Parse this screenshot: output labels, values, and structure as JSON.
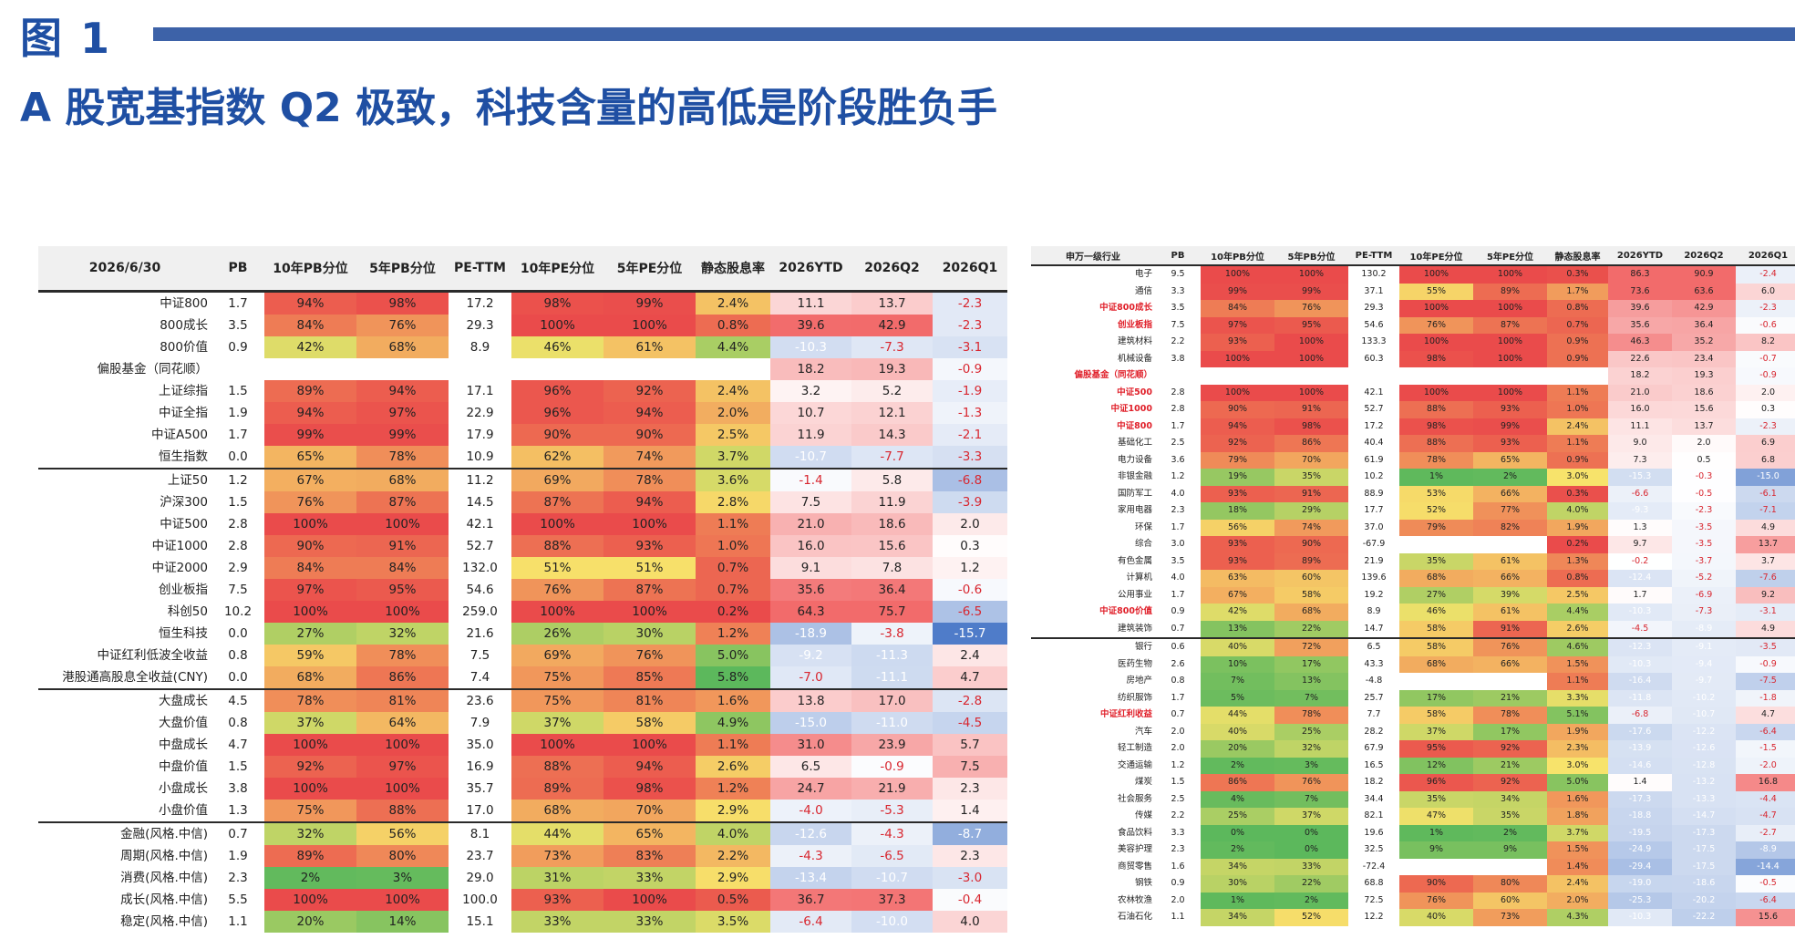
{
  "figure_label": "图 1",
  "title": "A 股宽基指数 Q2 极致，科技含量的高低是阶段胜负手",
  "left_table": {
    "headers": [
      "2026/6/30",
      "PB",
      "10年PB分位",
      "5年PB分位",
      "PE-TTM",
      "10年PE分位",
      "5年PE分位",
      "静态股息率",
      "2026YTD",
      "2026Q2",
      "2026Q1"
    ],
    "rows": [
      {
        "name": "中证800",
        "pb": "1.7",
        "pb10": "94%",
        "pb5": "98%",
        "pe": "17.2",
        "pe10": "98%",
        "pe5": "99%",
        "dy": "2.4%",
        "ytd": "11.1",
        "q2": "13.7",
        "q1": "-2.3"
      },
      {
        "name": "800成长",
        "pb": "3.5",
        "pb10": "84%",
        "pb5": "76%",
        "pe": "29.3",
        "pe10": "100%",
        "pe5": "100%",
        "dy": "0.8%",
        "ytd": "39.6",
        "q2": "42.9",
        "q1": "-2.3"
      },
      {
        "name": "800价值",
        "pb": "0.9",
        "pb10": "42%",
        "pb5": "68%",
        "pe": "8.9",
        "pe10": "46%",
        "pe5": "61%",
        "dy": "4.4%",
        "ytd": "-10.3",
        "q2": "-7.3",
        "q1": "-3.1"
      },
      {
        "name": "偏股基金（同花顺）",
        "pb": "",
        "pb10": "",
        "pb5": "",
        "pe": "",
        "pe10": "",
        "pe5": "",
        "dy": "",
        "ytd": "18.2",
        "q2": "19.3",
        "q1": "-0.9"
      },
      {
        "name": "上证综指",
        "pb": "1.5",
        "pb10": "89%",
        "pb5": "94%",
        "pe": "17.1",
        "pe10": "96%",
        "pe5": "92%",
        "dy": "2.4%",
        "ytd": "3.2",
        "q2": "5.2",
        "q1": "-1.9"
      },
      {
        "name": "中证全指",
        "pb": "1.9",
        "pb10": "94%",
        "pb5": "97%",
        "pe": "22.9",
        "pe10": "96%",
        "pe5": "94%",
        "dy": "2.0%",
        "ytd": "10.7",
        "q2": "12.1",
        "q1": "-1.3"
      },
      {
        "name": "中证A500",
        "pb": "1.7",
        "pb10": "99%",
        "pb5": "99%",
        "pe": "17.9",
        "pe10": "90%",
        "pe5": "90%",
        "dy": "2.5%",
        "ytd": "11.9",
        "q2": "14.3",
        "q1": "-2.1"
      },
      {
        "name": "恒生指数",
        "pb": "0.0",
        "pb10": "65%",
        "pb5": "78%",
        "pe": "10.9",
        "pe10": "62%",
        "pe5": "74%",
        "dy": "3.7%",
        "ytd": "-10.7",
        "q2": "-7.7",
        "q1": "-3.3"
      },
      {
        "name": "上证50",
        "pb": "1.2",
        "pb10": "67%",
        "pb5": "68%",
        "pe": "11.2",
        "pe10": "69%",
        "pe5": "78%",
        "dy": "3.6%",
        "ytd": "-1.4",
        "q2": "5.8",
        "q1": "-6.8",
        "sep": true
      },
      {
        "name": "沪深300",
        "pb": "1.5",
        "pb10": "76%",
        "pb5": "87%",
        "pe": "14.5",
        "pe10": "87%",
        "pe5": "94%",
        "dy": "2.8%",
        "ytd": "7.5",
        "q2": "11.9",
        "q1": "-3.9"
      },
      {
        "name": "中证500",
        "pb": "2.8",
        "pb10": "100%",
        "pb5": "100%",
        "pe": "42.1",
        "pe10": "100%",
        "pe5": "100%",
        "dy": "1.1%",
        "ytd": "21.0",
        "q2": "18.6",
        "q1": "2.0"
      },
      {
        "name": "中证1000",
        "pb": "2.8",
        "pb10": "90%",
        "pb5": "91%",
        "pe": "52.7",
        "pe10": "88%",
        "pe5": "93%",
        "dy": "1.0%",
        "ytd": "16.0",
        "q2": "15.6",
        "q1": "0.3"
      },
      {
        "name": "中证2000",
        "pb": "2.9",
        "pb10": "84%",
        "pb5": "84%",
        "pe": "132.0",
        "pe10": "51%",
        "pe5": "51%",
        "dy": "0.7%",
        "ytd": "9.1",
        "q2": "7.8",
        "q1": "1.2"
      },
      {
        "name": "创业板指",
        "pb": "7.5",
        "pb10": "97%",
        "pb5": "95%",
        "pe": "54.6",
        "pe10": "76%",
        "pe5": "87%",
        "dy": "0.7%",
        "ytd": "35.6",
        "q2": "36.4",
        "q1": "-0.6"
      },
      {
        "name": "科创50",
        "pb": "10.2",
        "pb10": "100%",
        "pb5": "100%",
        "pe": "259.0",
        "pe10": "100%",
        "pe5": "100%",
        "dy": "0.2%",
        "ytd": "64.3",
        "q2": "75.7",
        "q1": "-6.5"
      },
      {
        "name": "恒生科技",
        "pb": "0.0",
        "pb10": "27%",
        "pb5": "32%",
        "pe": "21.6",
        "pe10": "26%",
        "pe5": "30%",
        "dy": "1.2%",
        "ytd": "-18.9",
        "q2": "-3.8",
        "q1": "-15.7"
      },
      {
        "name": "中证红利低波全收益",
        "pb": "0.8",
        "pb10": "59%",
        "pb5": "78%",
        "pe": "7.5",
        "pe10": "69%",
        "pe5": "76%",
        "dy": "5.0%",
        "ytd": "-9.2",
        "q2": "-11.3",
        "q1": "2.4"
      },
      {
        "name": "港股通高股息全收益(CNY)",
        "pb": "0.0",
        "pb10": "68%",
        "pb5": "86%",
        "pe": "7.4",
        "pe10": "75%",
        "pe5": "85%",
        "dy": "5.8%",
        "ytd": "-7.0",
        "q2": "-11.1",
        "q1": "4.7"
      },
      {
        "name": "大盘成长",
        "pb": "4.5",
        "pb10": "78%",
        "pb5": "81%",
        "pe": "23.6",
        "pe10": "75%",
        "pe5": "81%",
        "dy": "1.6%",
        "ytd": "13.8",
        "q2": "17.0",
        "q1": "-2.8",
        "sep": true
      },
      {
        "name": "大盘价值",
        "pb": "0.8",
        "pb10": "37%",
        "pb5": "64%",
        "pe": "7.9",
        "pe10": "37%",
        "pe5": "58%",
        "dy": "4.9%",
        "ytd": "-15.0",
        "q2": "-11.0",
        "q1": "-4.5"
      },
      {
        "name": "中盘成长",
        "pb": "4.7",
        "pb10": "100%",
        "pb5": "100%",
        "pe": "35.0",
        "pe10": "100%",
        "pe5": "100%",
        "dy": "1.1%",
        "ytd": "31.0",
        "q2": "23.9",
        "q1": "5.7"
      },
      {
        "name": "中盘价值",
        "pb": "1.5",
        "pb10": "92%",
        "pb5": "97%",
        "pe": "16.9",
        "pe10": "88%",
        "pe5": "94%",
        "dy": "2.6%",
        "ytd": "6.5",
        "q2": "-0.9",
        "q1": "7.5"
      },
      {
        "name": "小盘成长",
        "pb": "3.8",
        "pb10": "100%",
        "pb5": "100%",
        "pe": "35.7",
        "pe10": "89%",
        "pe5": "98%",
        "dy": "1.2%",
        "ytd": "24.7",
        "q2": "21.9",
        "q1": "2.3"
      },
      {
        "name": "小盘价值",
        "pb": "1.3",
        "pb10": "75%",
        "pb5": "88%",
        "pe": "17.0",
        "pe10": "68%",
        "pe5": "70%",
        "dy": "2.9%",
        "ytd": "-4.0",
        "q2": "-5.3",
        "q1": "1.4"
      },
      {
        "name": "金融(风格.中信)",
        "pb": "0.7",
        "pb10": "32%",
        "pb5": "56%",
        "pe": "8.1",
        "pe10": "44%",
        "pe5": "65%",
        "dy": "4.0%",
        "ytd": "-12.6",
        "q2": "-4.3",
        "q1": "-8.7",
        "sep": true
      },
      {
        "name": "周期(风格.中信)",
        "pb": "1.9",
        "pb10": "89%",
        "pb5": "80%",
        "pe": "23.7",
        "pe10": "73%",
        "pe5": "83%",
        "dy": "2.2%",
        "ytd": "-4.3",
        "q2": "-6.5",
        "q1": "2.3"
      },
      {
        "name": "消费(风格.中信)",
        "pb": "2.3",
        "pb10": "2%",
        "pb5": "3%",
        "pe": "29.0",
        "pe10": "31%",
        "pe5": "33%",
        "dy": "2.9%",
        "ytd": "-13.4",
        "q2": "-10.7",
        "q1": "-3.0"
      },
      {
        "name": "成长(风格.中信)",
        "pb": "5.5",
        "pb10": "100%",
        "pb5": "100%",
        "pe": "100.0",
        "pe10": "93%",
        "pe5": "100%",
        "dy": "0.5%",
        "ytd": "36.7",
        "q2": "37.3",
        "q1": "-0.4"
      },
      {
        "name": "稳定(风格.中信)",
        "pb": "1.1",
        "pb10": "20%",
        "pb5": "14%",
        "pe": "15.1",
        "pe10": "33%",
        "pe5": "33%",
        "dy": "3.5%",
        "ytd": "-6.4",
        "q2": "-10.0",
        "q1": "4.0"
      }
    ]
  },
  "right_table": {
    "headers": [
      "申万一级行业",
      "PB",
      "10年PB分位",
      "5年PB分位",
      "PE-TTM",
      "10年PE分位",
      "5年PE分位",
      "静态股息率",
      "2026YTD",
      "2026Q2",
      "2026Q1"
    ],
    "rows": [
      {
        "name": "电子",
        "pb": "9.5",
        "pb10": "100%",
        "pb5": "100%",
        "pe": "130.2",
        "pe10": "100%",
        "pe5": "100%",
        "dy": "0.3%",
        "ytd": "86.3",
        "q2": "90.9",
        "q1": "-2.4"
      },
      {
        "name": "通信",
        "pb": "3.3",
        "pb10": "99%",
        "pb5": "99%",
        "pe": "37.1",
        "pe10": "55%",
        "pe5": "89%",
        "dy": "1.7%",
        "ytd": "73.6",
        "q2": "63.6",
        "q1": "6.0"
      },
      {
        "name": "中证800成长",
        "pb": "3.5",
        "pb10": "84%",
        "pb5": "76%",
        "pe": "29.3",
        "pe10": "100%",
        "pe5": "100%",
        "dy": "0.8%",
        "ytd": "39.6",
        "q2": "42.9",
        "q1": "-2.3",
        "hl": true
      },
      {
        "name": "创业板指",
        "pb": "7.5",
        "pb10": "97%",
        "pb5": "95%",
        "pe": "54.6",
        "pe10": "76%",
        "pe5": "87%",
        "dy": "0.7%",
        "ytd": "35.6",
        "q2": "36.4",
        "q1": "-0.6",
        "hl": true
      },
      {
        "name": "建筑材料",
        "pb": "2.2",
        "pb10": "93%",
        "pb5": "100%",
        "pe": "133.3",
        "pe10": "100%",
        "pe5": "100%",
        "dy": "0.9%",
        "ytd": "46.3",
        "q2": "35.2",
        "q1": "8.2"
      },
      {
        "name": "机械设备",
        "pb": "3.8",
        "pb10": "100%",
        "pb5": "100%",
        "pe": "60.3",
        "pe10": "98%",
        "pe5": "100%",
        "dy": "0.9%",
        "ytd": "22.6",
        "q2": "23.4",
        "q1": "-0.7"
      },
      {
        "name": "偏股基金（同花顺）",
        "pb": "",
        "pb10": "",
        "pb5": "",
        "pe": "",
        "pe10": "",
        "pe5": "",
        "dy": "",
        "ytd": "18.2",
        "q2": "19.3",
        "q1": "-0.9",
        "hl": true
      },
      {
        "name": "中证500",
        "pb": "2.8",
        "pb10": "100%",
        "pb5": "100%",
        "pe": "42.1",
        "pe10": "100%",
        "pe5": "100%",
        "dy": "1.1%",
        "ytd": "21.0",
        "q2": "18.6",
        "q1": "2.0",
        "hl": true
      },
      {
        "name": "中证1000",
        "pb": "2.8",
        "pb10": "90%",
        "pb5": "91%",
        "pe": "52.7",
        "pe10": "88%",
        "pe5": "93%",
        "dy": "1.0%",
        "ytd": "16.0",
        "q2": "15.6",
        "q1": "0.3",
        "hl": true
      },
      {
        "name": "中证800",
        "pb": "1.7",
        "pb10": "94%",
        "pb5": "98%",
        "pe": "17.2",
        "pe10": "98%",
        "pe5": "99%",
        "dy": "2.4%",
        "ytd": "11.1",
        "q2": "13.7",
        "q1": "-2.3",
        "hl": true
      },
      {
        "name": "基础化工",
        "pb": "2.5",
        "pb10": "92%",
        "pb5": "86%",
        "pe": "40.4",
        "pe10": "88%",
        "pe5": "93%",
        "dy": "1.1%",
        "ytd": "9.0",
        "q2": "2.0",
        "q1": "6.9"
      },
      {
        "name": "电力设备",
        "pb": "3.6",
        "pb10": "79%",
        "pb5": "70%",
        "pe": "61.9",
        "pe10": "78%",
        "pe5": "65%",
        "dy": "0.9%",
        "ytd": "7.3",
        "q2": "0.5",
        "q1": "6.8"
      },
      {
        "name": "非银金融",
        "pb": "1.2",
        "pb10": "19%",
        "pb5": "35%",
        "pe": "10.2",
        "pe10": "1%",
        "pe5": "2%",
        "dy": "3.0%",
        "ytd": "-15.3",
        "q2": "-0.3",
        "q1": "-15.0"
      },
      {
        "name": "国防军工",
        "pb": "4.0",
        "pb10": "93%",
        "pb5": "91%",
        "pe": "88.9",
        "pe10": "53%",
        "pe5": "66%",
        "dy": "0.3%",
        "ytd": "-6.6",
        "q2": "-0.5",
        "q1": "-6.1"
      },
      {
        "name": "家用电器",
        "pb": "2.3",
        "pb10": "18%",
        "pb5": "29%",
        "pe": "17.7",
        "pe10": "52%",
        "pe5": "77%",
        "dy": "4.0%",
        "ytd": "-9.3",
        "q2": "-2.3",
        "q1": "-7.1"
      },
      {
        "name": "环保",
        "pb": "1.7",
        "pb10": "56%",
        "pb5": "74%",
        "pe": "37.0",
        "pe10": "79%",
        "pe5": "82%",
        "dy": "1.9%",
        "ytd": "1.3",
        "q2": "-3.5",
        "q1": "4.9"
      },
      {
        "name": "综合",
        "pb": "3.0",
        "pb10": "93%",
        "pb5": "90%",
        "pe": "-67.9",
        "pe10": "",
        "pe5": "",
        "dy": "0.2%",
        "ytd": "9.7",
        "q2": "-3.5",
        "q1": "13.7"
      },
      {
        "name": "有色金属",
        "pb": "3.5",
        "pb10": "93%",
        "pb5": "89%",
        "pe": "21.9",
        "pe10": "35%",
        "pe5": "61%",
        "dy": "1.3%",
        "ytd": "-0.2",
        "q2": "-3.7",
        "q1": "3.7"
      },
      {
        "name": "计算机",
        "pb": "4.0",
        "pb10": "63%",
        "pb5": "60%",
        "pe": "139.6",
        "pe10": "68%",
        "pe5": "66%",
        "dy": "0.8%",
        "ytd": "-12.4",
        "q2": "-5.2",
        "q1": "-7.6"
      },
      {
        "name": "公用事业",
        "pb": "1.7",
        "pb10": "67%",
        "pb5": "58%",
        "pe": "19.2",
        "pe10": "27%",
        "pe5": "39%",
        "dy": "2.5%",
        "ytd": "1.7",
        "q2": "-6.9",
        "q1": "9.2"
      },
      {
        "name": "中证800价值",
        "pb": "0.9",
        "pb10": "42%",
        "pb5": "68%",
        "pe": "8.9",
        "pe10": "46%",
        "pe5": "61%",
        "dy": "4.4%",
        "ytd": "-10.3",
        "q2": "-7.3",
        "q1": "-3.1",
        "hl": true
      },
      {
        "name": "建筑装饰",
        "pb": "0.7",
        "pb10": "13%",
        "pb5": "22%",
        "pe": "14.7",
        "pe10": "58%",
        "pe5": "91%",
        "dy": "2.6%",
        "ytd": "-4.5",
        "q2": "-8.9",
        "q1": "4.9"
      },
      {
        "name": "银行",
        "pb": "0.6",
        "pb10": "40%",
        "pb5": "72%",
        "pe": "6.5",
        "pe10": "58%",
        "pe5": "76%",
        "dy": "4.6%",
        "ytd": "-12.3",
        "q2": "-9.1",
        "q1": "-3.5",
        "sep": true
      },
      {
        "name": "医药生物",
        "pb": "2.6",
        "pb10": "10%",
        "pb5": "17%",
        "pe": "43.3",
        "pe10": "68%",
        "pe5": "66%",
        "dy": "1.5%",
        "ytd": "-10.3",
        "q2": "-9.4",
        "q1": "-0.9"
      },
      {
        "name": "房地产",
        "pb": "0.8",
        "pb10": "7%",
        "pb5": "13%",
        "pe": "-4.8",
        "pe10": "",
        "pe5": "",
        "dy": "1.1%",
        "ytd": "-16.4",
        "q2": "-9.7",
        "q1": "-7.5"
      },
      {
        "name": "纺织服饰",
        "pb": "1.7",
        "pb10": "5%",
        "pb5": "7%",
        "pe": "25.7",
        "pe10": "17%",
        "pe5": "21%",
        "dy": "3.3%",
        "ytd": "-11.8",
        "q2": "-10.2",
        "q1": "-1.8"
      },
      {
        "name": "中证红利收益",
        "pb": "0.7",
        "pb10": "44%",
        "pb5": "78%",
        "pe": "7.7",
        "pe10": "58%",
        "pe5": "78%",
        "dy": "5.1%",
        "ytd": "-6.8",
        "q2": "-10.7",
        "q1": "4.7",
        "hl": true
      },
      {
        "name": "汽车",
        "pb": "2.0",
        "pb10": "40%",
        "pb5": "25%",
        "pe": "28.2",
        "pe10": "37%",
        "pe5": "17%",
        "dy": "1.9%",
        "ytd": "-17.6",
        "q2": "-12.2",
        "q1": "-6.4"
      },
      {
        "name": "轻工制造",
        "pb": "2.0",
        "pb10": "20%",
        "pb5": "32%",
        "pe": "67.9",
        "pe10": "95%",
        "pe5": "92%",
        "dy": "2.3%",
        "ytd": "-13.9",
        "q2": "-12.6",
        "q1": "-1.5"
      },
      {
        "name": "交通运输",
        "pb": "1.2",
        "pb10": "2%",
        "pb5": "3%",
        "pe": "16.5",
        "pe10": "12%",
        "pe5": "21%",
        "dy": "3.0%",
        "ytd": "-14.6",
        "q2": "-12.8",
        "q1": "-2.0"
      },
      {
        "name": "煤炭",
        "pb": "1.5",
        "pb10": "86%",
        "pb5": "76%",
        "pe": "18.2",
        "pe10": "96%",
        "pe5": "92%",
        "dy": "5.0%",
        "ytd": "1.4",
        "q2": "-13.2",
        "q1": "16.8"
      },
      {
        "name": "社会服务",
        "pb": "2.5",
        "pb10": "4%",
        "pb5": "7%",
        "pe": "34.4",
        "pe10": "35%",
        "pe5": "34%",
        "dy": "1.6%",
        "ytd": "-17.3",
        "q2": "-13.3",
        "q1": "-4.4"
      },
      {
        "name": "传媒",
        "pb": "2.2",
        "pb10": "25%",
        "pb5": "37%",
        "pe": "82.1",
        "pe10": "47%",
        "pe5": "35%",
        "dy": "1.8%",
        "ytd": "-18.8",
        "q2": "-14.7",
        "q1": "-4.7"
      },
      {
        "name": "食品饮料",
        "pb": "3.3",
        "pb10": "0%",
        "pb5": "0%",
        "pe": "19.6",
        "pe10": "1%",
        "pe5": "2%",
        "dy": "3.7%",
        "ytd": "-19.5",
        "q2": "-17.3",
        "q1": "-2.7"
      },
      {
        "name": "美容护理",
        "pb": "2.3",
        "pb10": "2%",
        "pb5": "0%",
        "pe": "32.5",
        "pe10": "9%",
        "pe5": "9%",
        "dy": "1.5%",
        "ytd": "-24.9",
        "q2": "-17.5",
        "q1": "-8.9"
      },
      {
        "name": "商贸零售",
        "pb": "1.6",
        "pb10": "34%",
        "pb5": "33%",
        "pe": "-72.4",
        "pe10": "",
        "pe5": "",
        "dy": "1.4%",
        "ytd": "-29.4",
        "q2": "-17.5",
        "q1": "-14.4"
      },
      {
        "name": "钢铁",
        "pb": "0.9",
        "pb10": "30%",
        "pb5": "22%",
        "pe": "68.8",
        "pe10": "90%",
        "pe5": "80%",
        "dy": "2.4%",
        "ytd": "-19.0",
        "q2": "-18.6",
        "q1": "-0.5"
      },
      {
        "name": "农林牧渔",
        "pb": "2.0",
        "pb10": "1%",
        "pb5": "2%",
        "pe": "72.5",
        "pe10": "76%",
        "pe5": "60%",
        "dy": "2.0%",
        "ytd": "-25.3",
        "q2": "-20.2",
        "q1": "-6.4"
      },
      {
        "name": "石油石化",
        "pb": "1.1",
        "pb10": "34%",
        "pb5": "52%",
        "pe": "12.2",
        "pe10": "40%",
        "pe5": "73%",
        "dy": "4.3%",
        "ytd": "-10.3",
        "q2": "-22.2",
        "q1": "15.6"
      }
    ]
  },
  "colors": {
    "accent": "#1f4fa3",
    "bar": "#3d62a8",
    "pct_low": "#5cb85c",
    "pct_mid": "#f7e36b",
    "pct_high": "#ea4b4b",
    "ret_pos": "#f26b6b",
    "ret_neg": "#4f7cc9"
  }
}
